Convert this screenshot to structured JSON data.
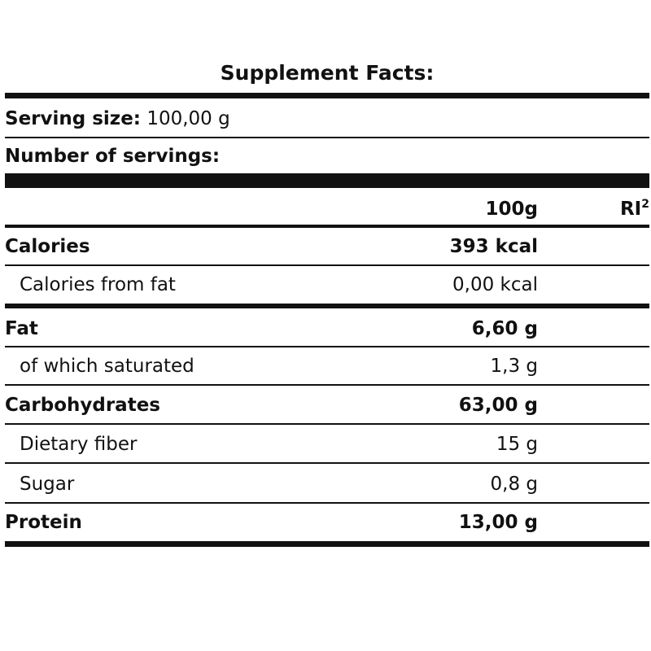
{
  "label": {
    "title": "Supplement Facts:",
    "serving_size_label": "Serving size:",
    "serving_size_value": "100,00 g",
    "servings_label": "Number of servings:",
    "columns": {
      "per": "100g",
      "ri": "RI",
      "ri_sup": "2"
    },
    "rows": [
      {
        "name": "Calories",
        "value": "393 kcal",
        "bold": true
      },
      {
        "name": "Calories from fat",
        "value": "0,00 kcal",
        "bold": false
      },
      {
        "name": "Fat",
        "value": "6,60 g",
        "bold": true
      },
      {
        "name": "of which saturated",
        "value": "1,3 g",
        "bold": false
      },
      {
        "name": "Carbohydrates",
        "value": "63,00 g",
        "bold": true
      },
      {
        "name": "Dietary fiber",
        "value": "15 g",
        "bold": false
      },
      {
        "name": "Sugar",
        "value": "0,8 g",
        "bold": false
      },
      {
        "name": "Protein",
        "value": "13,00 g",
        "bold": true
      }
    ]
  }
}
